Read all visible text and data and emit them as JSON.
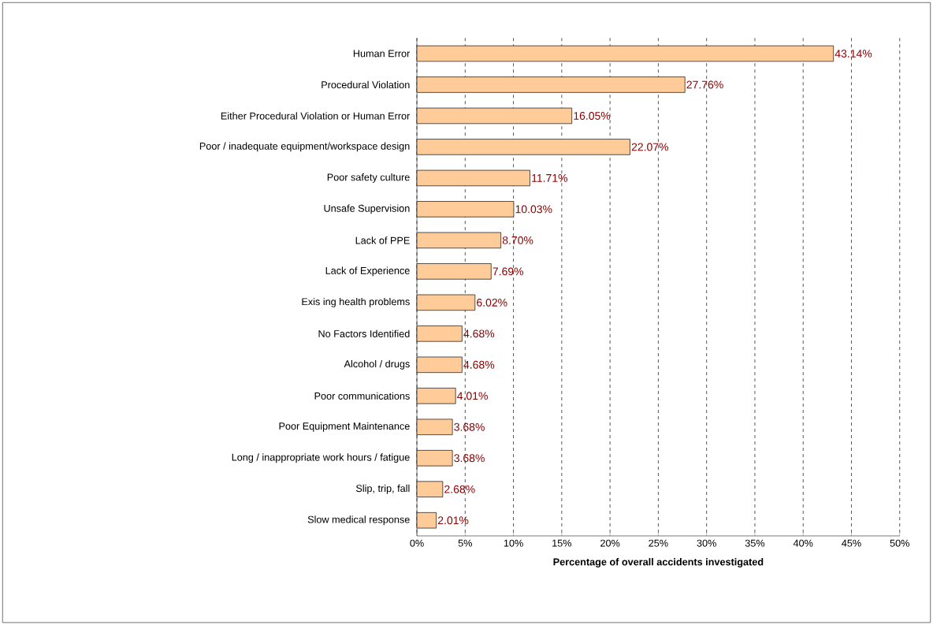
{
  "chart_data": {
    "type": "bar",
    "orientation": "horizontal",
    "xlabel": "Percentage of overall accidents investigated",
    "categories": [
      "Human Error",
      "Procedural Violation",
      "Either Procedural Violation or Human Error",
      "Poor / inadequate equipment/workspace design",
      "Poor safety culture",
      "Unsafe Supervision",
      "Lack of PPE",
      "Lack of Experience",
      "Exis ing health problems",
      "No Factors Identified",
      "Alcohol / drugs",
      "Poor communications",
      "Poor Equipment Maintenance",
      "Long / inappropriate work hours / fatigue",
      "Slip, trip, fall",
      "Slow medical response"
    ],
    "values": [
      43.14,
      27.76,
      16.05,
      22.07,
      11.71,
      10.03,
      8.7,
      7.69,
      6.02,
      4.68,
      4.68,
      4.01,
      3.68,
      3.68,
      2.68,
      2.01
    ],
    "value_labels": [
      "43.14%",
      "27.76%",
      "16.05%",
      "22.07%",
      "11.71%",
      "10.03%",
      "8.70%",
      "7.69%",
      "6.02%",
      "4.68%",
      "4.68%",
      "4.01%",
      "3.68%",
      "3.68%",
      "2.68%",
      "2.01%"
    ],
    "color": "#ffcc99",
    "grid": "x",
    "xlim": [
      0,
      50
    ],
    "xticks": [
      {
        "value": 0,
        "label": "0%"
      },
      {
        "value": 5,
        "label": "5%"
      },
      {
        "value": 10,
        "label": "10%"
      },
      {
        "value": 15,
        "label": "15%"
      },
      {
        "value": 20,
        "label": "20%"
      },
      {
        "value": 25,
        "label": "25%"
      },
      {
        "value": 30,
        "label": "30%"
      },
      {
        "value": 35,
        "label": "35%"
      },
      {
        "value": 40,
        "label": "40%"
      },
      {
        "value": 45,
        "label": "45%"
      },
      {
        "value": 50,
        "label": "50%"
      }
    ]
  }
}
